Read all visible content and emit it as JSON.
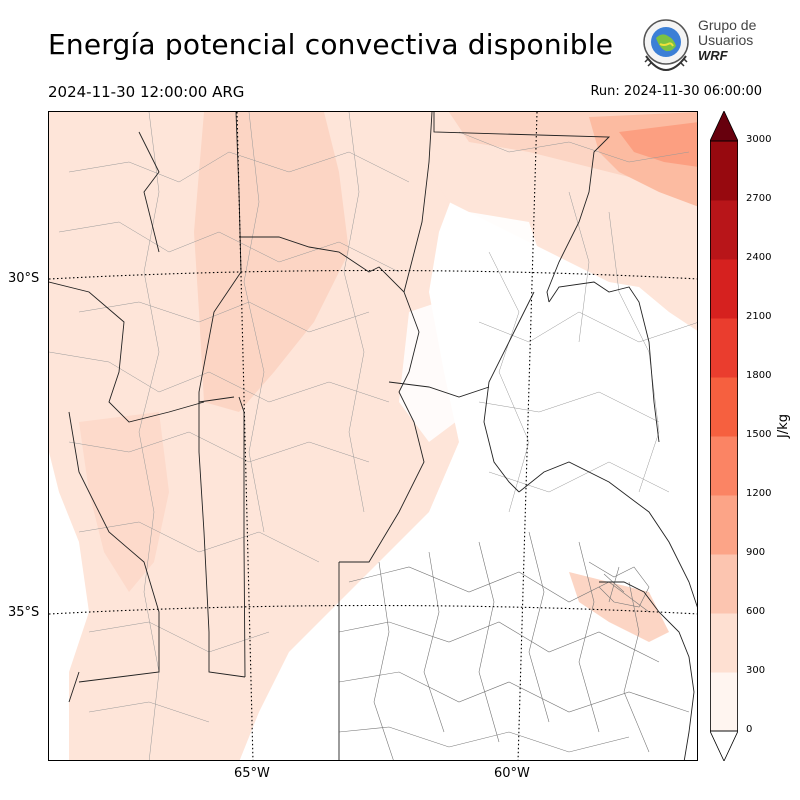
{
  "title": "Energía potencial convectiva disponible",
  "valid_time": "2024-11-30 12:00:00 ARG",
  "run_time": "Run: 2024-11-30 06:00:00",
  "logo": {
    "line1": "Grupo de",
    "line2": "Usuarios",
    "line3": "WRF"
  },
  "map": {
    "lat_labels": [
      "30°S",
      "35°S"
    ],
    "lon_labels": [
      "65°W",
      "60°W"
    ],
    "field": "CAPE",
    "shading_colors": [
      "#fee5d9",
      "#fcd5c4",
      "#fcbba1",
      "#fc9f81",
      "#fb7c5c",
      "#f6593f",
      "#ea3a2e",
      "#d21e20",
      "#b41318",
      "#8e0b13",
      "#67000d"
    ]
  },
  "colorbar": {
    "unit": "J/kg",
    "ticks": [
      "0",
      "300",
      "600",
      "900",
      "1200",
      "1500",
      "1800",
      "2100",
      "2400",
      "2700",
      "3000"
    ],
    "colors": [
      "#fff5f0",
      "#fee0d2",
      "#fcc5b0",
      "#fca487",
      "#fb8464",
      "#f6603f",
      "#ea3d2e",
      "#d6211f",
      "#b81519",
      "#97090f",
      "#6f0009"
    ]
  }
}
